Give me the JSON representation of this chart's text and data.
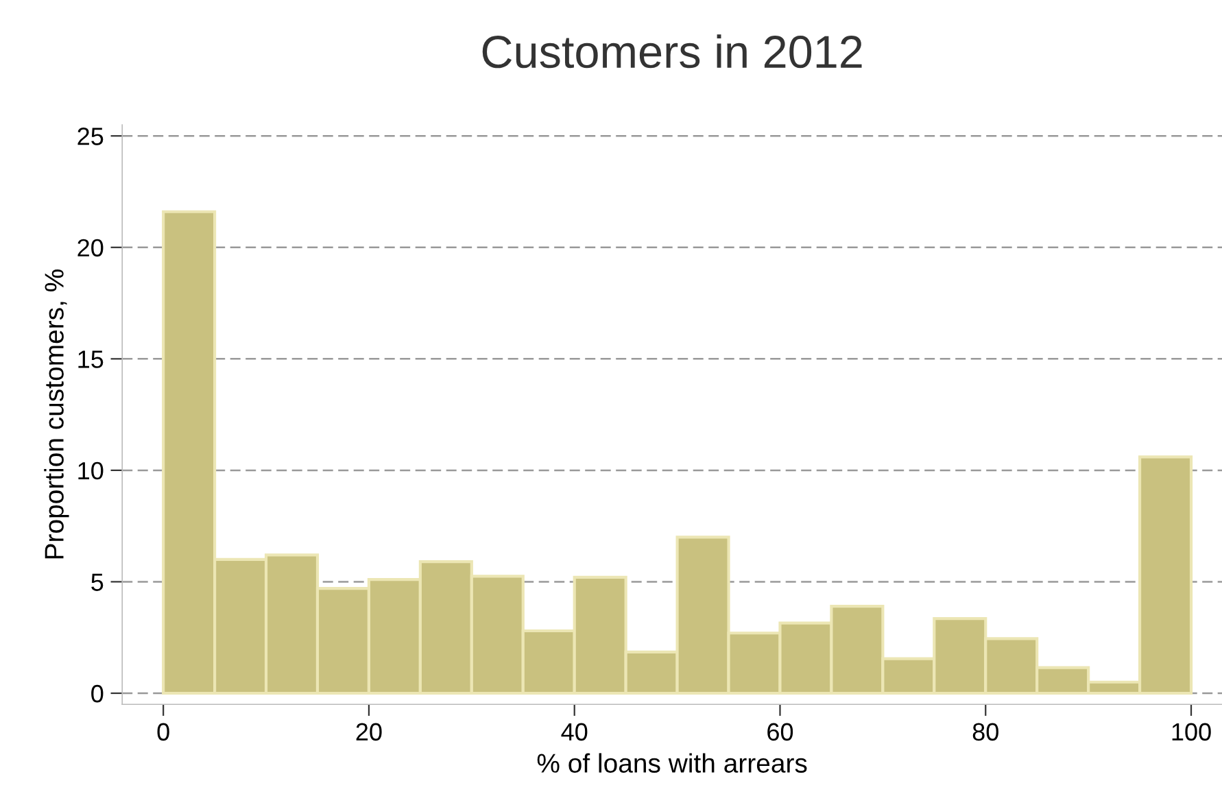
{
  "chart_data": {
    "type": "histogram",
    "title": "Customers in 2012",
    "xlabel": "% of loans with arrears",
    "ylabel": "Proportion customers, %",
    "bins": [
      0,
      5,
      10,
      15,
      20,
      25,
      30,
      35,
      40,
      45,
      50,
      55,
      60,
      65,
      70,
      75,
      80,
      85,
      90,
      95,
      100
    ],
    "values": [
      21.6,
      6.0,
      6.2,
      4.7,
      5.1,
      5.9,
      5.25,
      2.8,
      5.2,
      1.85,
      7.0,
      2.7,
      3.15,
      3.9,
      1.55,
      3.35,
      2.45,
      1.15,
      0.5,
      10.6
    ],
    "color": "#c9c17f",
    "xlim": [
      -4,
      103
    ],
    "ylim": [
      -0.5,
      25.5
    ],
    "xticks": [
      0,
      20,
      40,
      60,
      80,
      100
    ],
    "yticks": [
      0,
      5,
      10,
      15,
      20,
      25
    ],
    "grid": "y",
    "legend": false
  }
}
